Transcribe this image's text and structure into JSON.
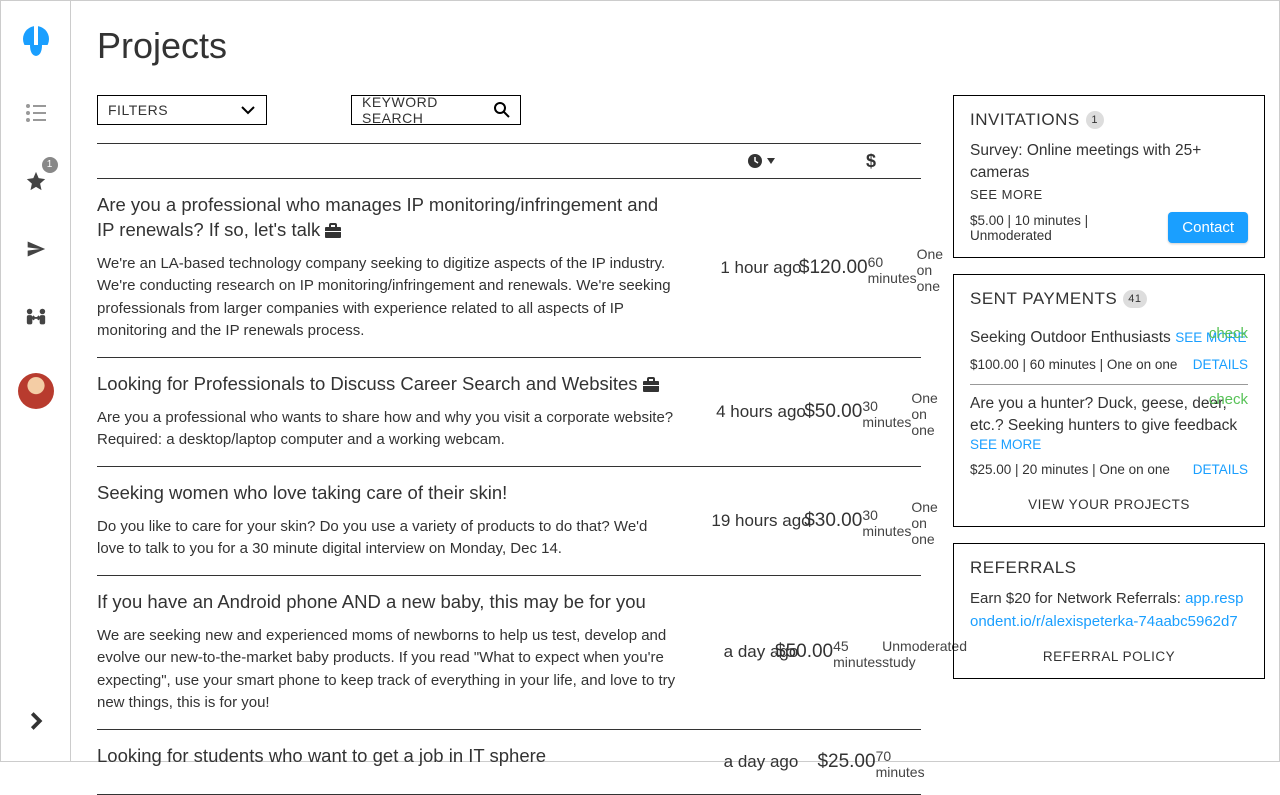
{
  "page": {
    "title": "Projects"
  },
  "controls": {
    "filters_label": "FILTERS",
    "search_label": "KEYWORD SEARCH"
  },
  "sidebar": {
    "star_badge": "1"
  },
  "list": {
    "rows": [
      {
        "title": "Are you a professional who manages IP monitoring/infringement and IP renewals? If so, let's talk",
        "has_briefcase": true,
        "desc": "We're an LA-based technology company seeking to digitize aspects of the IP industry. We're conducting research on IP monitoring/infringement and renewals. We're seeking professionals from larger companies with experience related to all aspects of IP monitoring and the IP renewals process.",
        "time": "1 hour ago",
        "pay": "$120.00",
        "duration": "60 minutes",
        "type": "One on one"
      },
      {
        "title": "Looking for Professionals to Discuss Career Search and Websites",
        "has_briefcase": true,
        "desc": "Are you a professional who wants to share how and why you visit a corporate website? Required: a desktop/laptop computer and a working webcam.",
        "time": "4 hours ago",
        "pay": "$50.00",
        "duration": "30 minutes",
        "type": "One on one"
      },
      {
        "title": "Seeking women who love taking care of their skin!",
        "has_briefcase": false,
        "desc": "Do you like to care for your skin? Do you use a variety of products to do that? We'd love to talk to you for a 30 minute digital interview on Monday, Dec 14.",
        "time": "19 hours ago",
        "pay": "$30.00",
        "duration": "30 minutes",
        "type": "One on one"
      },
      {
        "title": "If you have an Android phone AND a new baby, this may be for you",
        "has_briefcase": false,
        "desc": "We are seeking new and experienced moms of newborns to help us test, develop and evolve our new-to-the-market baby products. If you read \"What to expect when you're expecting\", use your smart phone to keep track of everything in your life, and love to try new things, this is for you!",
        "time": "a day ago",
        "pay": "$50.00",
        "duration": "45 minutes",
        "type": "Unmoderated study"
      },
      {
        "title": "Looking for students who want to get a job in IT sphere",
        "has_briefcase": false,
        "desc": "",
        "time": "a day ago",
        "pay": "$25.00",
        "duration": "70 minutes",
        "type": ""
      }
    ]
  },
  "invitations": {
    "heading": "INVITATIONS",
    "count": "1",
    "item_title": "Survey: Online meetings with 25+ cameras",
    "see_more": "SEE MORE",
    "meta": "$5.00 | 10 minutes | Unmoderated",
    "contact_label": "Contact"
  },
  "payments": {
    "heading": "SENT PAYMENTS",
    "count": "41",
    "items": [
      {
        "title": "Seeking Outdoor Enthusiasts",
        "see_more": "SEE MORE",
        "check": "check",
        "meta": "$100.00 | 60 minutes | One on one",
        "details": "DETAILS"
      },
      {
        "title": "Are you a hunter? Duck, geese, deer, etc.? Seeking hunters to give feedback",
        "see_more": "SEE MORE",
        "check": "check",
        "meta": "$25.00 | 20 minutes | One on one",
        "details": "DETAILS"
      }
    ],
    "footer": "VIEW YOUR PROJECTS"
  },
  "referrals": {
    "heading": "REFERRALS",
    "text": "Earn $20 for Network Referrals:",
    "link": "app.respondent.io/r/alexispeterka-74aabc5962d7",
    "footer": "REFERRAL POLICY"
  }
}
